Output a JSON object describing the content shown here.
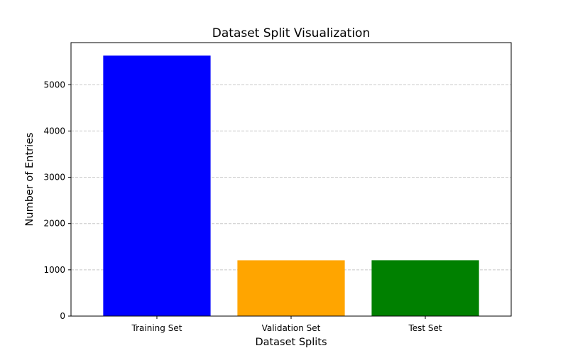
{
  "chart_data": {
    "type": "bar",
    "title": "Dataset Split Visualization",
    "xlabel": "Dataset Splits",
    "ylabel": "Number of Entries",
    "categories": [
      "Training Set",
      "Validation Set",
      "Test Set"
    ],
    "values": [
      5629,
      1206,
      1207
    ],
    "colors": [
      "#0000ff",
      "#ffa500",
      "#008000"
    ],
    "ylim": [
      0,
      5910
    ],
    "yticks": [
      0,
      1000,
      2000,
      3000,
      4000,
      5000
    ],
    "grid": {
      "y": true,
      "x": false,
      "style": "dashed",
      "color": "#c8c8c8"
    },
    "legend": "none"
  }
}
